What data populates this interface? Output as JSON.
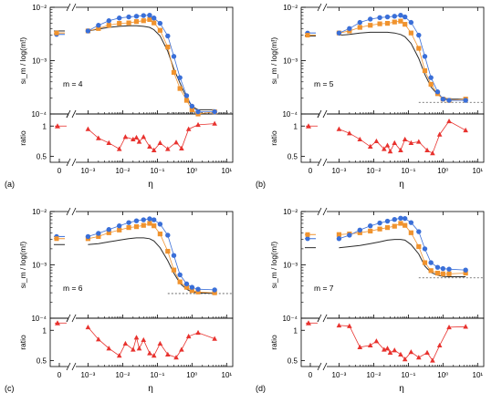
{
  "figure": {
    "ylabel_top": "sι_m / log(m!)",
    "ylabel_bottom": "ratio",
    "xlabel": "η",
    "colors": {
      "series_a": "#3a6fd8",
      "series_b": "#f0932e",
      "reference": "#2b2b2b",
      "ratio": "#e8322e",
      "asymptote": "#555555"
    },
    "zero_tick": "0",
    "x_tick_labels": [
      "10⁻³",
      "10⁻²",
      "10⁻¹",
      "10⁰",
      "10¹"
    ],
    "y_tick_labels": [
      "10⁻⁴",
      "10⁻³",
      "10⁻²"
    ],
    "ratio_tick_labels": [
      "0.5",
      "1"
    ]
  },
  "chart_data": [
    {
      "type": "line",
      "panel_label": "(a)",
      "annotation": "m = 4",
      "x_scale": "log",
      "xlim": [
        0.0005,
        15
      ],
      "ylim": [
        0.0001,
        0.01
      ],
      "ratio_ylim": [
        0.4,
        1.2
      ],
      "x": [
        0.001,
        0.002,
        0.004,
        0.008,
        0.015,
        0.025,
        0.04,
        0.06,
        0.08,
        0.12,
        0.2,
        0.3,
        0.45,
        0.7,
        1.0,
        1.5,
        4.5
      ],
      "zero_values": {
        "blue": 0.0031,
        "orange": 0.0033,
        "black": 0.0036
      },
      "series": [
        {
          "values": [
            0.0036,
            0.0046,
            0.0056,
            0.0063,
            0.0066,
            0.0068,
            0.007,
            0.0071,
            0.0063,
            0.005,
            0.0029,
            0.0012,
            0.00048,
            0.00022,
            0.00014,
            0.00011,
            0.00011
          ]
        },
        {
          "values": [
            0.0036,
            0.004,
            0.0046,
            0.005,
            0.0051,
            0.0054,
            0.0056,
            0.0059,
            0.0051,
            0.0037,
            0.0018,
            0.0006,
            0.0003,
            0.00018,
            0.00012,
            0.0001,
            0.00011
          ]
        },
        {
          "values": [
            0.0036,
            0.0039,
            0.0042,
            0.0044,
            0.0045,
            0.0045,
            0.0044,
            0.0042,
            0.0038,
            0.0029,
            0.0015,
            0.0007,
            0.00038,
            0.0002,
            0.00014,
            0.00012,
            0.00012
          ]
        }
      ],
      "asymptote": 0.000105,
      "ratio": {
        "zero": 1.0,
        "x": [
          0.001,
          0.002,
          0.004,
          0.008,
          0.012,
          0.02,
          0.025,
          0.03,
          0.04,
          0.06,
          0.08,
          0.12,
          0.2,
          0.35,
          0.5,
          0.8,
          1.5,
          4.5
        ],
        "values": [
          0.95,
          0.8,
          0.72,
          0.62,
          0.82,
          0.78,
          0.81,
          0.74,
          0.82,
          0.66,
          0.6,
          0.72,
          0.62,
          0.73,
          0.63,
          0.95,
          1.02,
          1.04
        ]
      }
    },
    {
      "type": "line",
      "panel_label": "(b)",
      "annotation": "m = 5",
      "x_scale": "log",
      "xlim": [
        0.0005,
        15
      ],
      "ylim": [
        0.0001,
        0.01
      ],
      "ratio_ylim": [
        0.4,
        1.2
      ],
      "x": [
        0.001,
        0.002,
        0.004,
        0.008,
        0.015,
        0.025,
        0.04,
        0.06,
        0.08,
        0.12,
        0.2,
        0.3,
        0.45,
        0.7,
        1.0,
        1.5,
        4.5
      ],
      "zero_values": {
        "blue": 0.0033,
        "orange": 0.003,
        "black": 0.0029
      },
      "series": [
        {
          "values": [
            0.0033,
            0.004,
            0.0052,
            0.006,
            0.0064,
            0.0066,
            0.0068,
            0.0071,
            0.0066,
            0.0052,
            0.003,
            0.0012,
            0.00048,
            0.00026,
            0.00019,
            0.00018,
            0.00018
          ]
        },
        {
          "values": [
            0.0033,
            0.0036,
            0.0042,
            0.0046,
            0.0049,
            0.005,
            0.0053,
            0.0055,
            0.0048,
            0.0033,
            0.0017,
            0.00065,
            0.00036,
            0.00024,
            0.00019,
            0.00018,
            0.00019
          ]
        },
        {
          "values": [
            0.003,
            0.0031,
            0.0033,
            0.0034,
            0.0034,
            0.0034,
            0.0033,
            0.0031,
            0.0028,
            0.0021,
            0.0011,
            0.00055,
            0.00032,
            0.00023,
            0.0002,
            0.00019,
            0.00019
          ]
        }
      ],
      "asymptote": 0.000165,
      "ratio": {
        "zero": 1.0,
        "x": [
          0.001,
          0.002,
          0.004,
          0.008,
          0.012,
          0.02,
          0.025,
          0.03,
          0.04,
          0.06,
          0.08,
          0.12,
          0.2,
          0.35,
          0.5,
          0.8,
          1.5,
          4.5
        ],
        "values": [
          0.95,
          0.88,
          0.78,
          0.66,
          0.75,
          0.62,
          0.68,
          0.58,
          0.72,
          0.6,
          0.78,
          0.72,
          0.74,
          0.6,
          0.55,
          0.86,
          1.08,
          0.93
        ]
      }
    },
    {
      "type": "line",
      "panel_label": "(c)",
      "annotation": "m = 6",
      "x_scale": "log",
      "xlim": [
        0.0005,
        15
      ],
      "ylim": [
        0.0001,
        0.01
      ],
      "ratio_ylim": [
        0.4,
        1.2
      ],
      "x": [
        0.001,
        0.002,
        0.004,
        0.008,
        0.015,
        0.025,
        0.04,
        0.06,
        0.08,
        0.12,
        0.2,
        0.3,
        0.45,
        0.7,
        1.0,
        1.5,
        4.5
      ],
      "zero_values": {
        "blue": 0.0034,
        "orange": 0.0031,
        "black": 0.0024
      },
      "series": [
        {
          "values": [
            0.0034,
            0.0039,
            0.0046,
            0.0054,
            0.0062,
            0.0067,
            0.007,
            0.0073,
            0.007,
            0.0058,
            0.0036,
            0.0015,
            0.00065,
            0.00044,
            0.00038,
            0.00035,
            0.00034
          ]
        },
        {
          "values": [
            0.0031,
            0.0034,
            0.004,
            0.0045,
            0.005,
            0.0052,
            0.0055,
            0.006,
            0.0054,
            0.0038,
            0.0018,
            0.0008,
            0.00048,
            0.00038,
            0.00033,
            0.00031,
            0.0003
          ]
        },
        {
          "values": [
            0.0024,
            0.0025,
            0.0027,
            0.0029,
            0.0031,
            0.0032,
            0.0032,
            0.0031,
            0.0028,
            0.0021,
            0.0012,
            0.0007,
            0.00045,
            0.00035,
            0.00031,
            0.0003,
            0.00029
          ]
        }
      ],
      "asymptote": 0.00029,
      "ratio": {
        "zero": 1.12,
        "x": [
          0.001,
          0.002,
          0.004,
          0.008,
          0.012,
          0.02,
          0.025,
          0.03,
          0.04,
          0.06,
          0.08,
          0.12,
          0.2,
          0.35,
          0.5,
          0.8,
          1.5,
          4.5
        ],
        "values": [
          1.05,
          0.85,
          0.7,
          0.58,
          0.78,
          0.68,
          0.88,
          0.7,
          0.84,
          0.62,
          0.58,
          0.78,
          0.6,
          0.55,
          0.68,
          0.9,
          0.96,
          0.86
        ]
      }
    },
    {
      "type": "line",
      "panel_label": "(d)",
      "annotation": "m = 7",
      "x_scale": "log",
      "xlim": [
        0.0005,
        15
      ],
      "ylim": [
        0.0001,
        0.01
      ],
      "ratio_ylim": [
        0.4,
        1.2
      ],
      "x": [
        0.001,
        0.002,
        0.004,
        0.008,
        0.015,
        0.025,
        0.04,
        0.06,
        0.08,
        0.12,
        0.2,
        0.3,
        0.45,
        0.7,
        1.0,
        1.5,
        4.5
      ],
      "zero_values": {
        "blue": 0.0031,
        "orange": 0.0037,
        "black": 0.0021
      },
      "series": [
        {
          "values": [
            0.0031,
            0.0036,
            0.0045,
            0.0054,
            0.0061,
            0.0066,
            0.0071,
            0.0075,
            0.0074,
            0.0062,
            0.0042,
            0.002,
            0.0011,
            0.0009,
            0.00085,
            0.00083,
            0.0008
          ]
        },
        {
          "values": [
            0.0037,
            0.0038,
            0.004,
            0.0043,
            0.0047,
            0.005,
            0.0053,
            0.006,
            0.0055,
            0.004,
            0.0022,
            0.0011,
            0.00078,
            0.0007,
            0.00068,
            0.00068,
            0.0007
          ]
        },
        {
          "values": [
            0.0021,
            0.0022,
            0.0023,
            0.0025,
            0.0027,
            0.0029,
            0.003,
            0.003,
            0.0029,
            0.0024,
            0.0016,
            0.00095,
            0.00072,
            0.00064,
            0.00061,
            0.0006,
            0.0006
          ]
        }
      ],
      "asymptote": 0.00057,
      "ratio": {
        "zero": 1.12,
        "x": [
          0.001,
          0.002,
          0.004,
          0.008,
          0.012,
          0.02,
          0.025,
          0.03,
          0.04,
          0.06,
          0.08,
          0.12,
          0.2,
          0.35,
          0.5,
          0.8,
          1.5,
          4.5
        ],
        "values": [
          1.08,
          1.07,
          0.72,
          0.75,
          0.82,
          0.68,
          0.7,
          0.63,
          0.67,
          0.6,
          0.52,
          0.64,
          0.55,
          0.63,
          0.5,
          0.75,
          1.05,
          1.06
        ]
      }
    }
  ]
}
